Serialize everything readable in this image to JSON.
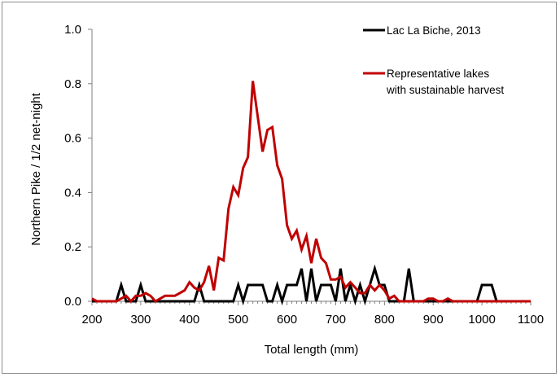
{
  "chart_data": {
    "type": "line",
    "xlabel": "Total length (mm)",
    "ylabel": "Northern Pike / 1/2 net-night",
    "xlim": [
      200,
      1100
    ],
    "ylim": [
      0,
      1.0
    ],
    "x_ticks": [
      200,
      300,
      400,
      500,
      600,
      700,
      800,
      900,
      1000,
      1100
    ],
    "y_ticks": [
      "0.0",
      "0.2",
      "0.4",
      "0.6",
      "0.8",
      "1.0"
    ],
    "y_tick_values": [
      0,
      0.2,
      0.4,
      0.6,
      0.8,
      1.0
    ],
    "grid": false,
    "legend_position": "top-right",
    "series": [
      {
        "name": "Lac La Biche, 2013",
        "color": "#000000",
        "points": [
          [
            200,
            0
          ],
          [
            250,
            0
          ],
          [
            260,
            0.06
          ],
          [
            270,
            0
          ],
          [
            290,
            0
          ],
          [
            300,
            0.06
          ],
          [
            310,
            0
          ],
          [
            410,
            0
          ],
          [
            420,
            0.06
          ],
          [
            430,
            0
          ],
          [
            490,
            0
          ],
          [
            500,
            0.06
          ],
          [
            510,
            0
          ],
          [
            520,
            0.06
          ],
          [
            530,
            0.06
          ],
          [
            540,
            0.06
          ],
          [
            550,
            0.06
          ],
          [
            560,
            0
          ],
          [
            570,
            0
          ],
          [
            580,
            0.06
          ],
          [
            590,
            0
          ],
          [
            600,
            0.06
          ],
          [
            610,
            0.06
          ],
          [
            620,
            0.06
          ],
          [
            630,
            0.12
          ],
          [
            640,
            0
          ],
          [
            650,
            0.12
          ],
          [
            660,
            0
          ],
          [
            670,
            0.06
          ],
          [
            680,
            0.06
          ],
          [
            690,
            0.06
          ],
          [
            700,
            0
          ],
          [
            710,
            0.12
          ],
          [
            720,
            0
          ],
          [
            730,
            0.06
          ],
          [
            740,
            0
          ],
          [
            750,
            0.06
          ],
          [
            760,
            0
          ],
          [
            770,
            0.06
          ],
          [
            780,
            0.12
          ],
          [
            790,
            0.06
          ],
          [
            800,
            0.06
          ],
          [
            810,
            0
          ],
          [
            840,
            0
          ],
          [
            850,
            0.12
          ],
          [
            860,
            0
          ],
          [
            990,
            0
          ],
          [
            1000,
            0.06
          ],
          [
            1010,
            0.06
          ],
          [
            1020,
            0.06
          ],
          [
            1030,
            0
          ],
          [
            1100,
            0
          ]
        ]
      },
      {
        "name": "Representative lakes with sustainable harvest",
        "color": "#c00000",
        "points": [
          [
            200,
            0.01
          ],
          [
            210,
            0
          ],
          [
            250,
            0
          ],
          [
            270,
            0.02
          ],
          [
            280,
            0
          ],
          [
            290,
            0.02
          ],
          [
            300,
            0.02
          ],
          [
            310,
            0.03
          ],
          [
            320,
            0.02
          ],
          [
            330,
            0
          ],
          [
            340,
            0.01
          ],
          [
            350,
            0.02
          ],
          [
            360,
            0.02
          ],
          [
            370,
            0.02
          ],
          [
            380,
            0.03
          ],
          [
            390,
            0.04
          ],
          [
            400,
            0.07
          ],
          [
            410,
            0.05
          ],
          [
            420,
            0.04
          ],
          [
            430,
            0.07
          ],
          [
            440,
            0.13
          ],
          [
            450,
            0.04
          ],
          [
            460,
            0.16
          ],
          [
            470,
            0.15
          ],
          [
            480,
            0.34
          ],
          [
            490,
            0.42
          ],
          [
            500,
            0.39
          ],
          [
            510,
            0.49
          ],
          [
            520,
            0.53
          ],
          [
            530,
            0.81
          ],
          [
            540,
            0.68
          ],
          [
            550,
            0.55
          ],
          [
            560,
            0.63
          ],
          [
            570,
            0.64
          ],
          [
            580,
            0.5
          ],
          [
            590,
            0.45
          ],
          [
            600,
            0.28
          ],
          [
            610,
            0.23
          ],
          [
            620,
            0.26
          ],
          [
            630,
            0.19
          ],
          [
            640,
            0.24
          ],
          [
            650,
            0.14
          ],
          [
            660,
            0.23
          ],
          [
            670,
            0.16
          ],
          [
            680,
            0.14
          ],
          [
            690,
            0.08
          ],
          [
            700,
            0.08
          ],
          [
            710,
            0.09
          ],
          [
            720,
            0.05
          ],
          [
            730,
            0.07
          ],
          [
            740,
            0.05
          ],
          [
            750,
            0.03
          ],
          [
            760,
            0.03
          ],
          [
            770,
            0.06
          ],
          [
            780,
            0.04
          ],
          [
            790,
            0.06
          ],
          [
            800,
            0.04
          ],
          [
            810,
            0.01
          ],
          [
            820,
            0.02
          ],
          [
            830,
            0
          ],
          [
            880,
            0
          ],
          [
            890,
            0.01
          ],
          [
            900,
            0.01
          ],
          [
            910,
            0
          ],
          [
            920,
            0
          ],
          [
            930,
            0.01
          ],
          [
            940,
            0
          ],
          [
            1100,
            0
          ]
        ]
      }
    ]
  },
  "legend": {
    "items": [
      {
        "label_lines": [
          "Lac La Biche, 2013"
        ],
        "color": "#000000"
      },
      {
        "label_lines": [
          "Representative lakes",
          "with sustainable harvest"
        ],
        "color": "#c00000"
      }
    ]
  }
}
